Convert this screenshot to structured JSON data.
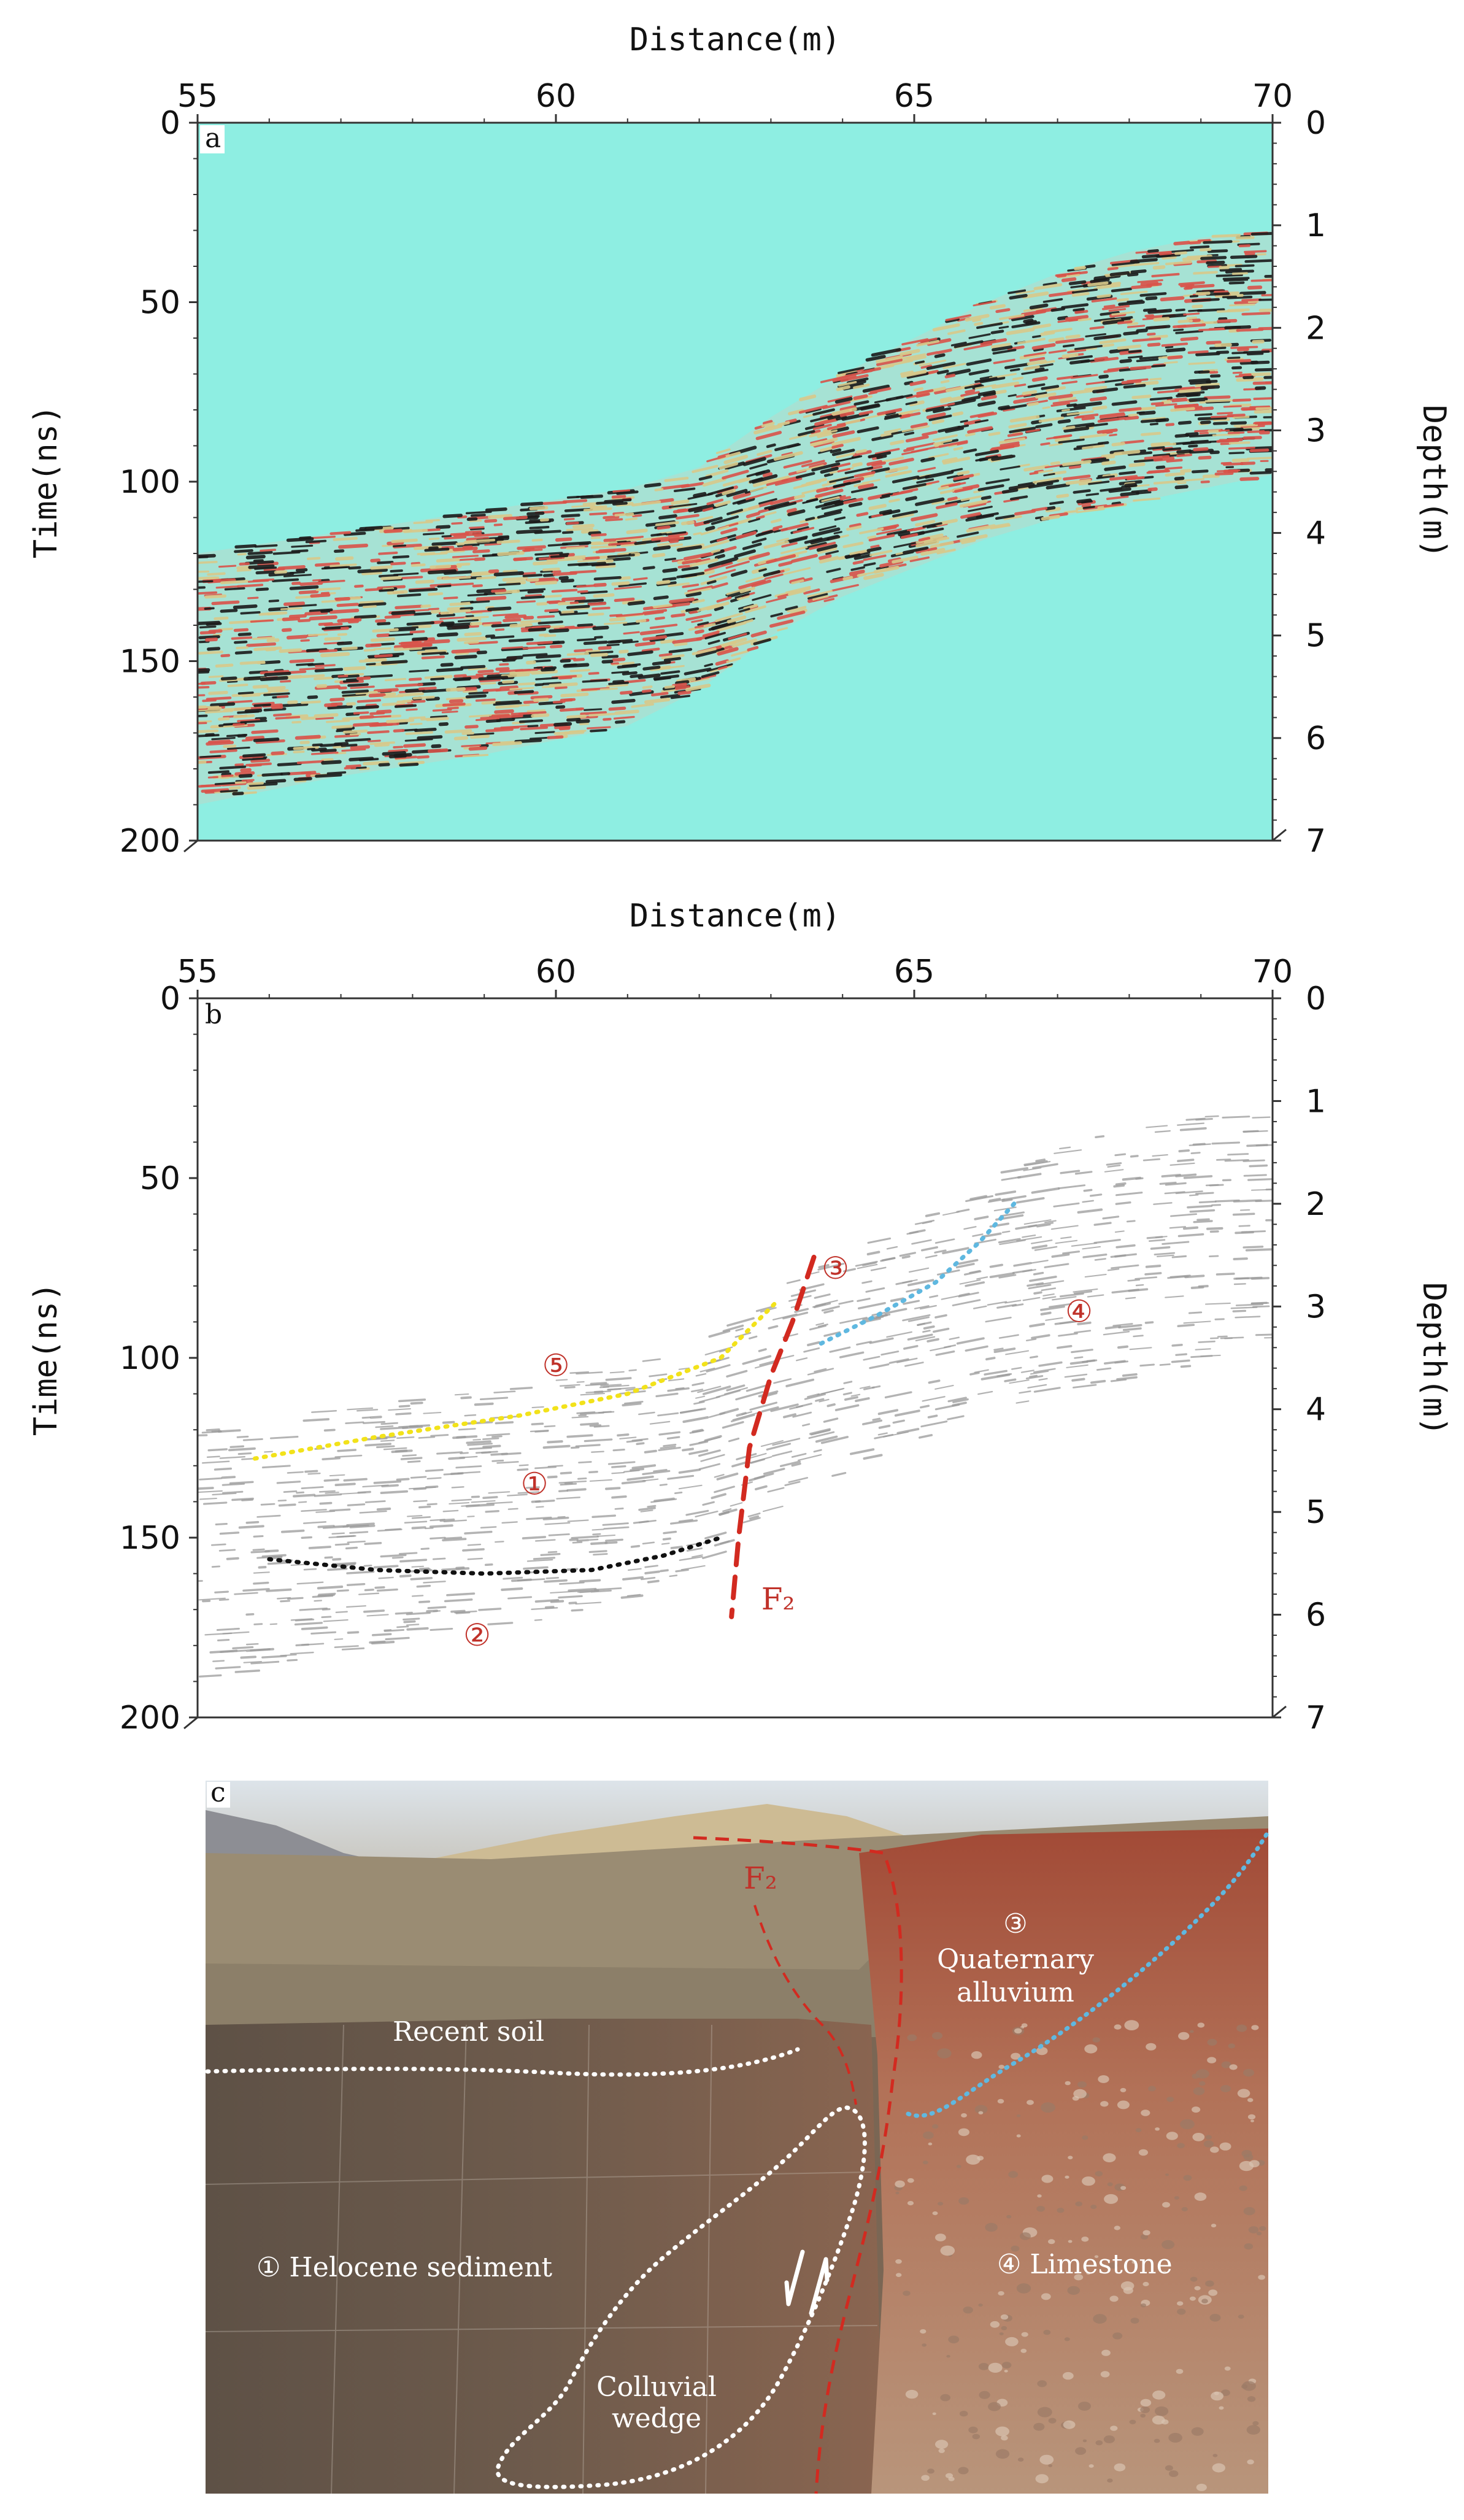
{
  "colors": {
    "radargram_background": "#8eeee2",
    "reflection_dark": "#1b1b1b",
    "reflection_red": "#d9534a",
    "reflection_yellow": "#d8c98a",
    "interpretation_gray": "#9a9a9a",
    "fault_red": "#d22a20",
    "boundary_yellow": "#f2e21a",
    "boundary_black": "#111111",
    "boundary_blue": "#5fb8e0",
    "label_red": "#c0322a"
  },
  "chart_data": [
    {
      "panel": "a",
      "type": "radargram",
      "title": "",
      "xlabel": "Distance(m)",
      "ylabel_left": "Time(ns)",
      "ylabel_right": "Depth(m)",
      "xlim": [
        55,
        70
      ],
      "ylim": [
        0,
        200
      ],
      "ylim_right": [
        0,
        7
      ],
      "x_ticks": [
        55,
        60,
        65,
        70
      ],
      "y_ticks": [
        0,
        50,
        100,
        150,
        200
      ],
      "y_ticks_right": [
        0,
        1,
        2,
        3,
        4,
        5,
        6,
        7
      ],
      "section_top_ns": [
        {
          "x": 55,
          "t": 120
        },
        {
          "x": 57,
          "t": 114
        },
        {
          "x": 59,
          "t": 108
        },
        {
          "x": 61,
          "t": 102
        },
        {
          "x": 62,
          "t": 96
        },
        {
          "x": 63,
          "t": 82
        },
        {
          "x": 64,
          "t": 70
        },
        {
          "x": 65,
          "t": 60
        },
        {
          "x": 66,
          "t": 50
        },
        {
          "x": 67,
          "t": 42
        },
        {
          "x": 68,
          "t": 36
        },
        {
          "x": 69,
          "t": 32
        },
        {
          "x": 70,
          "t": 30
        }
      ],
      "section_bottom_ns": [
        {
          "x": 55,
          "t": 190
        },
        {
          "x": 57,
          "t": 182
        },
        {
          "x": 59,
          "t": 176
        },
        {
          "x": 61,
          "t": 168
        },
        {
          "x": 62,
          "t": 158
        },
        {
          "x": 63,
          "t": 143
        },
        {
          "x": 64,
          "t": 132
        },
        {
          "x": 65,
          "t": 124
        },
        {
          "x": 66,
          "t": 116
        },
        {
          "x": 67,
          "t": 110
        },
        {
          "x": 68,
          "t": 106
        },
        {
          "x": 69,
          "t": 102
        },
        {
          "x": 70,
          "t": 98
        }
      ]
    },
    {
      "panel": "b",
      "type": "interpreted_radargram",
      "title": "",
      "xlabel": "Distance(m)",
      "ylabel_left": "Time(ns)",
      "ylabel_right": "Depth(m)",
      "xlim": [
        55,
        70
      ],
      "ylim": [
        0,
        200
      ],
      "ylim_right": [
        0,
        7
      ],
      "x_ticks": [
        55,
        60,
        65,
        70
      ],
      "y_ticks": [
        0,
        50,
        100,
        150,
        200
      ],
      "y_ticks_right": [
        0,
        1,
        2,
        3,
        4,
        5,
        6,
        7
      ],
      "section_top_ns": [
        {
          "x": 55,
          "t": 120
        },
        {
          "x": 57,
          "t": 114
        },
        {
          "x": 59,
          "t": 108
        },
        {
          "x": 61,
          "t": 102
        },
        {
          "x": 62,
          "t": 96
        },
        {
          "x": 63,
          "t": 82
        },
        {
          "x": 64,
          "t": 70
        },
        {
          "x": 65,
          "t": 60
        },
        {
          "x": 66,
          "t": 50
        },
        {
          "x": 67,
          "t": 42
        },
        {
          "x": 68,
          "t": 36
        },
        {
          "x": 69,
          "t": 32
        },
        {
          "x": 70,
          "t": 30
        }
      ],
      "section_bottom_ns": [
        {
          "x": 55,
          "t": 190
        },
        {
          "x": 57,
          "t": 182
        },
        {
          "x": 59,
          "t": 176
        },
        {
          "x": 61,
          "t": 168
        },
        {
          "x": 62,
          "t": 158
        },
        {
          "x": 63,
          "t": 143
        },
        {
          "x": 64,
          "t": 132
        },
        {
          "x": 65,
          "t": 124
        },
        {
          "x": 66,
          "t": 116
        },
        {
          "x": 67,
          "t": 110
        },
        {
          "x": 68,
          "t": 106
        },
        {
          "x": 69,
          "t": 102
        },
        {
          "x": 70,
          "t": 98
        }
      ],
      "interpretation_lines": [
        {
          "name": "fault-F2",
          "style": "dashed",
          "color": "fault_red",
          "points": [
            [
              63.6,
              72
            ],
            [
              63.3,
              90
            ],
            [
              63.0,
              105
            ],
            [
              62.7,
              125
            ],
            [
              62.55,
              150
            ],
            [
              62.45,
              172
            ]
          ]
        },
        {
          "name": "unit5-base",
          "style": "dotted",
          "color": "boundary_yellow",
          "points": [
            [
              55.8,
              128
            ],
            [
              57.5,
              122
            ],
            [
              59.5,
              116
            ],
            [
              61.0,
              110
            ],
            [
              62.3,
              100
            ],
            [
              63.1,
              84
            ]
          ]
        },
        {
          "name": "unit1-unit2-boundary",
          "style": "dotted",
          "color": "boundary_black",
          "points": [
            [
              56.0,
              156
            ],
            [
              57.5,
              159
            ],
            [
              59.0,
              160
            ],
            [
              60.5,
              159
            ],
            [
              61.5,
              155
            ],
            [
              62.3,
              150
            ]
          ]
        },
        {
          "name": "unit3-unit4-boundary",
          "style": "dotted",
          "color": "boundary_blue",
          "points": [
            [
              63.7,
              96
            ],
            [
              64.5,
              88
            ],
            [
              65.3,
              79
            ],
            [
              65.9,
              68
            ],
            [
              66.4,
              57
            ]
          ]
        }
      ],
      "unit_labels": [
        {
          "text": "⑤",
          "x": 60.0,
          "t": 105
        },
        {
          "text": "①",
          "x": 59.7,
          "t": 138
        },
        {
          "text": "②",
          "x": 58.9,
          "t": 180
        },
        {
          "text": "③",
          "x": 63.9,
          "t": 78
        },
        {
          "text": "④",
          "x": 67.3,
          "t": 90
        },
        {
          "text": "F₂",
          "x": 63.1,
          "t": 170
        }
      ]
    }
  ],
  "photo": {
    "panel_letter": "c",
    "labels": {
      "fault": "F₂",
      "unit3_number": "③",
      "unit3_line1": "Quaternary",
      "unit3_line2": "alluvium",
      "recent_soil": "Recent soil",
      "unit1": "① Helocene sediment",
      "unit4": "④ Limestone",
      "wedge_line1": "Colluvial",
      "wedge_line2": "wedge"
    }
  }
}
